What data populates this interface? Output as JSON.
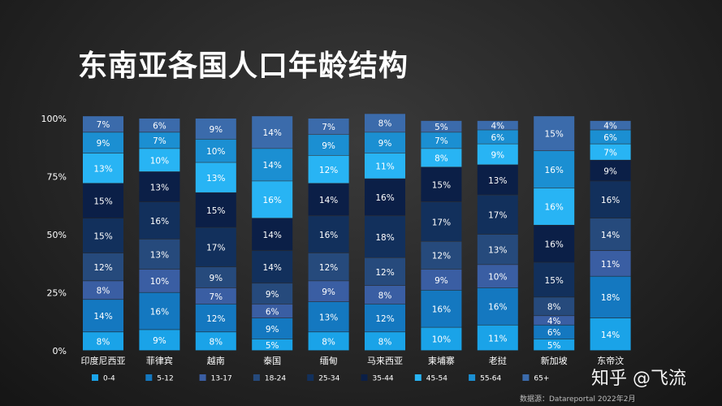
{
  "title": "东南亚各国人口年龄结构",
  "watermark": "知乎 @飞流",
  "source": "数据源：Datareportal  2022年2月",
  "chart_data": {
    "type": "bar",
    "stacked": true,
    "title": "东南亚各国人口年龄结构",
    "xlabel": "",
    "ylabel": "",
    "ylim": [
      0,
      100
    ],
    "yticks": [
      "0%",
      "25%",
      "50%",
      "75%",
      "100%"
    ],
    "categories": [
      "印度尼西亚",
      "菲律宾",
      "越南",
      "泰国",
      "缅甸",
      "马来西亚",
      "柬埔寨",
      "老挝",
      "新加坡",
      "东帝汶"
    ],
    "legend_position": "bottom",
    "series": [
      {
        "name": "0-4",
        "color": "#1aa3e8",
        "values": [
          8,
          9,
          8,
          5,
          8,
          8,
          10,
          11,
          5,
          14
        ]
      },
      {
        "name": "5-12",
        "color": "#1478c0",
        "values": [
          14,
          16,
          12,
          9,
          13,
          12,
          16,
          16,
          6,
          18
        ]
      },
      {
        "name": "13-17",
        "color": "#3a5ea3",
        "values": [
          8,
          10,
          7,
          6,
          9,
          8,
          9,
          10,
          4,
          11
        ]
      },
      {
        "name": "18-24",
        "color": "#264a7c",
        "values": [
          12,
          13,
          9,
          9,
          12,
          12,
          12,
          13,
          8,
          14
        ]
      },
      {
        "name": "25-34",
        "color": "#12305c",
        "values": [
          15,
          16,
          17,
          14,
          16,
          18,
          17,
          17,
          15,
          16
        ]
      },
      {
        "name": "35-44",
        "color": "#0b1f47",
        "values": [
          15,
          13,
          15,
          14,
          14,
          16,
          15,
          13,
          16,
          9
        ]
      },
      {
        "name": "45-54",
        "color": "#28b4f4",
        "values": [
          13,
          10,
          13,
          16,
          12,
          11,
          8,
          9,
          16,
          7
        ]
      },
      {
        "name": "55-64",
        "color": "#1b8fd2",
        "values": [
          9,
          7,
          10,
          14,
          9,
          9,
          7,
          6,
          16,
          6
        ]
      },
      {
        "name": "65+",
        "color": "#3b6bab",
        "values": [
          7,
          6,
          9,
          14,
          7,
          8,
          5,
          4,
          15,
          4
        ]
      }
    ]
  }
}
